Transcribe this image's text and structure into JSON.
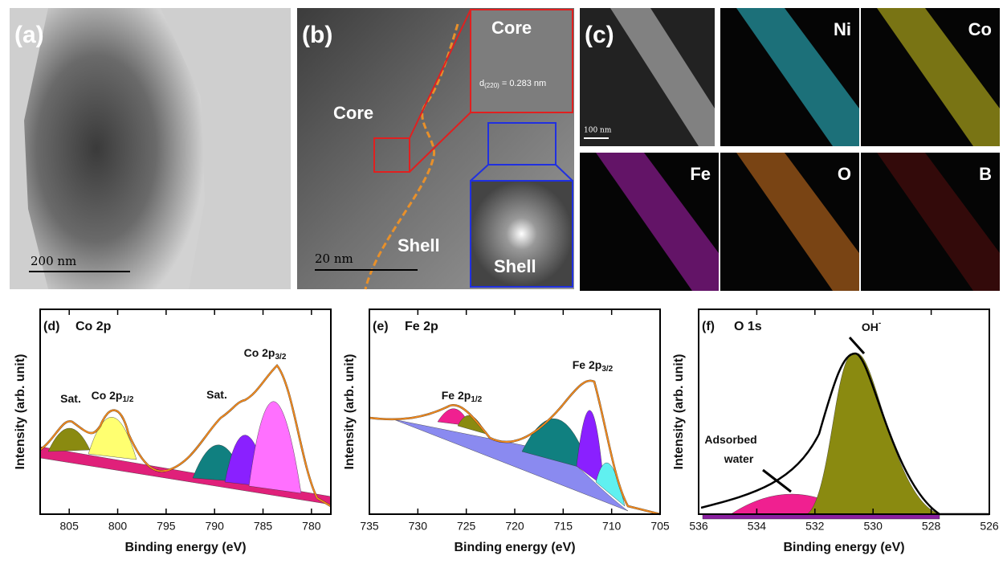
{
  "panel_a": {
    "label": "(a)",
    "scale_bar": "200 nm"
  },
  "panel_b": {
    "label": "(b)",
    "core": "Core",
    "inset_core": "Core",
    "lattice": {
      "text": "d",
      "sub": "(220)",
      "rest": " = 0.283 nm"
    },
    "shell": "Shell",
    "inset_shell": "Shell",
    "scale_bar": "20 nm"
  },
  "panel_c": {
    "label": "(c)",
    "scale_bar": "100 nm",
    "maps": [
      "Ni",
      "Co",
      "Fe",
      "O",
      "B"
    ]
  },
  "charts": [
    {
      "type": "xps",
      "label": "(d)",
      "title": "Co 2p",
      "x_label": "Binding energy (eV)",
      "y_label": "Intensity (arb. unit)",
      "xlim": [
        808,
        778
      ],
      "xticks": [
        805,
        800,
        795,
        790,
        785,
        780
      ],
      "annotations": [
        {
          "text": "Sat."
        },
        {
          "text": "Co 2p",
          "sub": "1/2"
        },
        {
          "text": "Sat."
        },
        {
          "text": "Co 2p",
          "sub": "3/2"
        }
      ]
    },
    {
      "type": "xps",
      "label": "(e)",
      "title": "Fe 2p",
      "x_label": "Binding energy (eV)",
      "y_label": "Intensity (arb. unit)",
      "xlim": [
        735,
        705
      ],
      "xticks": [
        735,
        730,
        725,
        720,
        715,
        710,
        705
      ],
      "annotations": [
        {
          "text": "Fe 2p",
          "sub": "1/2"
        },
        {
          "text": "Fe 2p",
          "sub": "3/2"
        }
      ]
    },
    {
      "type": "xps",
      "label": "(f)",
      "title": "O 1s",
      "x_label": "Binding energy (eV)",
      "y_label": "Intensity (arb. unit)",
      "xlim": [
        536,
        526
      ],
      "xticks": [
        536,
        534,
        532,
        530,
        528,
        526
      ],
      "annotations": [
        {
          "text": "OH",
          "sup": "-"
        },
        {
          "text": "Adsorbed"
        },
        {
          "text": "water"
        }
      ]
    }
  ]
}
